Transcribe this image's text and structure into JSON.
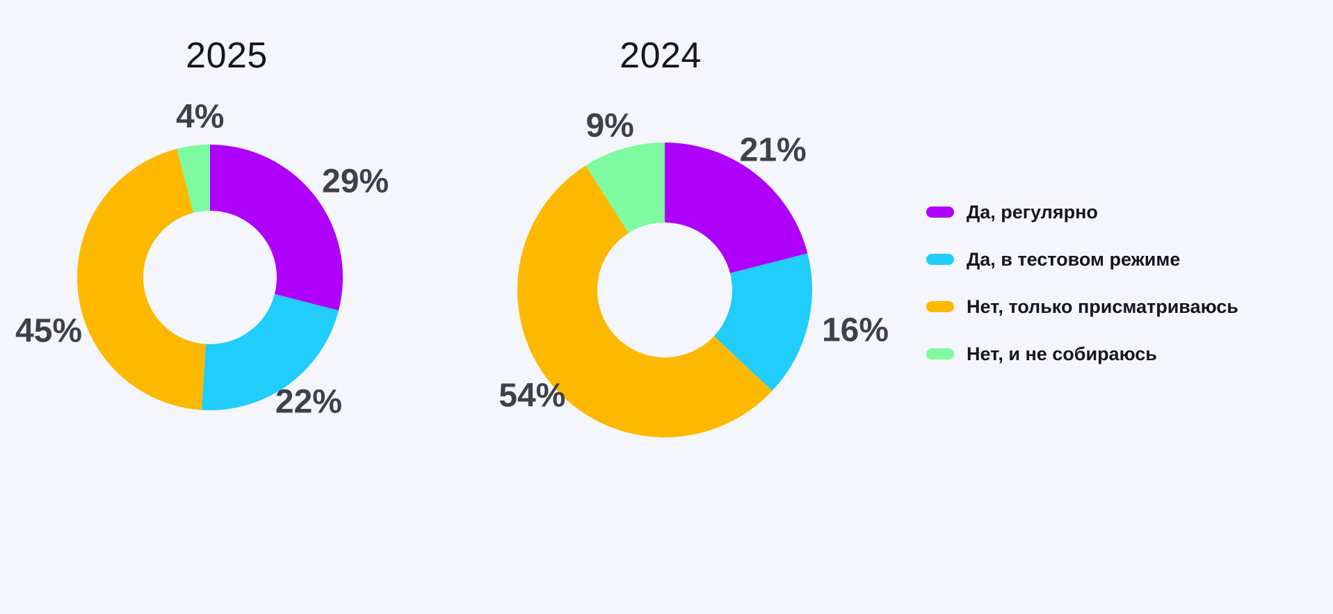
{
  "page": {
    "background": "#F5F6FB"
  },
  "text_colors": {
    "title": "#16161E",
    "percent_label": "#3F404A",
    "legend_label": "#16161E"
  },
  "legend": {
    "items": [
      {
        "key": "yes-regular",
        "label": "Да, регулярно",
        "color": "#AE00FA"
      },
      {
        "key": "yes-test-mode",
        "label": "Да, в тестовом режиме",
        "color": "#20CDFB"
      },
      {
        "key": "no-just-looking",
        "label": "Нет, только присматриваюсь",
        "color": "#FDB900"
      },
      {
        "key": "no-not-going-to",
        "label": "Нет, и не собираюсь",
        "color": "#7EFBA1"
      }
    ]
  },
  "chart_data": [
    {
      "type": "pie",
      "subtype": "donut",
      "title": "2025",
      "categories": [
        "Да, регулярно",
        "Да, в тестовом режиме",
        "Нет, только присматриваюсь",
        "Нет, и не собираюсь"
      ],
      "values": [
        29,
        22,
        45,
        4
      ],
      "display_labels": [
        "29%",
        "22%",
        "45%",
        "4%"
      ],
      "unit": "%",
      "start_angle_deg": 0,
      "direction": "clockwise",
      "legend_position": "right"
    },
    {
      "type": "pie",
      "subtype": "donut",
      "title": "2024",
      "categories": [
        "Да, регулярно",
        "Да, в тестовом режиме",
        "Нет, только присматриваюсь",
        "Нет, и не собираюсь"
      ],
      "values": [
        21,
        16,
        54,
        9
      ],
      "display_labels": [
        "21%",
        "16%",
        "54%",
        "9%"
      ],
      "unit": "%",
      "start_angle_deg": 0,
      "direction": "clockwise",
      "legend_position": "right"
    }
  ]
}
